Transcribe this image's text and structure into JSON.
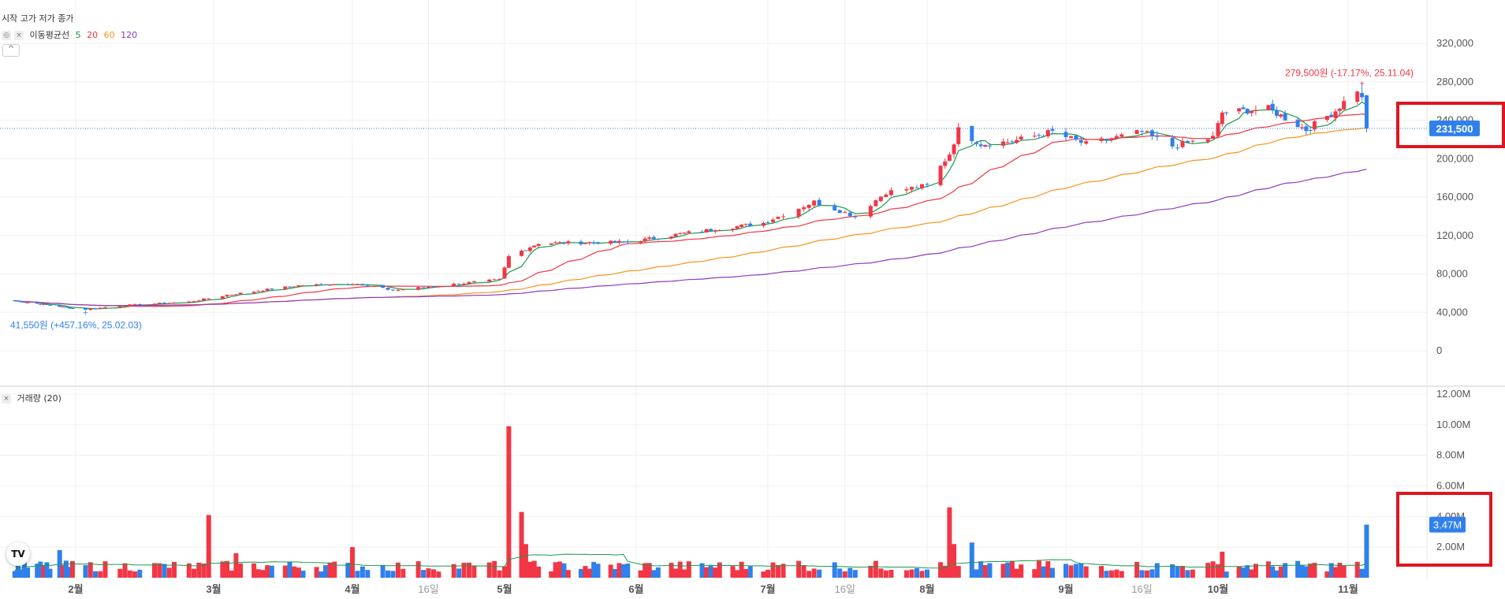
{
  "legend": {
    "ohlc_label": "시작 고가 저가 종가",
    "ma_label": "이동평균선",
    "ma_periods": [
      "5",
      "20",
      "60",
      "120"
    ],
    "volume_label": "거래량 (20)",
    "collapse_symbol": "^",
    "logo_text": "TV"
  },
  "colors": {
    "up": "#f23645",
    "down": "#2f80ed",
    "ma5": "#1a9a4b",
    "ma20": "#f23645",
    "ma60": "#f7931e",
    "ma120": "#8e3bbf",
    "price_line": "#2f80ed",
    "highlight": "#e0151f"
  },
  "chart_data": [
    {
      "type": "candlestick",
      "title": "",
      "y_axis": {
        "ticks": [
          "320,000",
          "280,000",
          "240,000",
          "200,000",
          "160,000",
          "120,000",
          "80,000",
          "40,000",
          "0"
        ],
        "tick_values": [
          320000,
          280000,
          240000,
          200000,
          160000,
          120000,
          80000,
          40000,
          0
        ]
      },
      "x_axis": {
        "labels": [
          "2월",
          "3월",
          "4월",
          "16일",
          "5월",
          "6월",
          "7월",
          "16일",
          "8월",
          "9월",
          "16일",
          "10월",
          "11월"
        ],
        "dates": [
          "2025-02-01",
          "2025-03-01",
          "2025-04-01",
          "2025-04-16",
          "2025-05-01",
          "2025-06-01",
          "2025-07-01",
          "2025-07-16",
          "2025-08-01",
          "2025-09-01",
          "2025-09-16",
          "2025-10-01",
          "2025-11-01"
        ]
      },
      "price_anchors": [
        [
          "2025-01-13",
          52000
        ],
        [
          "2025-02-03",
          43000
        ],
        [
          "2025-02-10",
          47000
        ],
        [
          "2025-02-24",
          51000
        ],
        [
          "2025-03-04",
          58000
        ],
        [
          "2025-03-20",
          68000
        ],
        [
          "2025-04-01",
          70000
        ],
        [
          "2025-04-09",
          63000
        ],
        [
          "2025-04-30",
          74000
        ],
        [
          "2025-05-02",
          98000
        ],
        [
          "2025-05-09",
          112000
        ],
        [
          "2025-05-30",
          113000
        ],
        [
          "2025-06-13",
          123000
        ],
        [
          "2025-06-30",
          133000
        ],
        [
          "2025-07-10",
          155000
        ],
        [
          "2025-07-18",
          140000
        ],
        [
          "2025-07-24",
          165000
        ],
        [
          "2025-08-01",
          172000
        ],
        [
          "2025-08-06",
          205000
        ],
        [
          "2025-08-08",
          230000
        ],
        [
          "2025-08-13",
          215000
        ],
        [
          "2025-08-20",
          218000
        ],
        [
          "2025-08-29",
          228000
        ],
        [
          "2025-09-05",
          215000
        ],
        [
          "2025-09-16",
          228000
        ],
        [
          "2025-09-22",
          213000
        ],
        [
          "2025-09-30",
          222000
        ],
        [
          "2025-10-02",
          248000
        ],
        [
          "2025-10-13",
          252000
        ],
        [
          "2025-10-22",
          230000
        ],
        [
          "2025-10-29",
          250000
        ],
        [
          "2025-11-03",
          272000
        ],
        [
          "2025-11-04",
          262000
        ],
        [
          "2025-11-05",
          231500
        ]
      ],
      "last_price": 231500,
      "last_price_label": "231,500",
      "max_annotation": {
        "text": "279,500원 (-17.17%, 25.11.04)",
        "value": 279500,
        "date": "2025-11-04"
      },
      "min_annotation": {
        "text": "41,550원 (+457.16%, 25.02.03)",
        "value": 41550,
        "date": "2025-02-03"
      },
      "moving_averages": [
        "5",
        "20",
        "60",
        "120"
      ]
    },
    {
      "type": "bar",
      "title": "거래량 (20)",
      "y_axis": {
        "ticks": [
          "12.00M",
          "10.00M",
          "8.00M",
          "6.00M",
          "4.00M",
          "2.00M"
        ],
        "tick_values": [
          12000000,
          10000000,
          8000000,
          6000000,
          4000000,
          2000000
        ]
      },
      "baseline_volume": 800000,
      "volume_spikes": [
        [
          "2025-01-27",
          1800000
        ],
        [
          "2025-02-28",
          4100000
        ],
        [
          "2025-03-06",
          1600000
        ],
        [
          "2025-04-01",
          2000000
        ],
        [
          "2025-04-28",
          1000000
        ],
        [
          "2025-05-02",
          9900000
        ],
        [
          "2025-05-05",
          4300000
        ],
        [
          "2025-05-06",
          2200000
        ],
        [
          "2025-07-07",
          1100000
        ],
        [
          "2025-08-06",
          4600000
        ],
        [
          "2025-08-07",
          2200000
        ],
        [
          "2025-08-11",
          2300000
        ],
        [
          "2025-10-02",
          1700000
        ],
        [
          "2025-11-05",
          3470000
        ]
      ],
      "last_value": 3470000,
      "last_value_label": "3.47M",
      "moving_average_period": "20"
    }
  ]
}
